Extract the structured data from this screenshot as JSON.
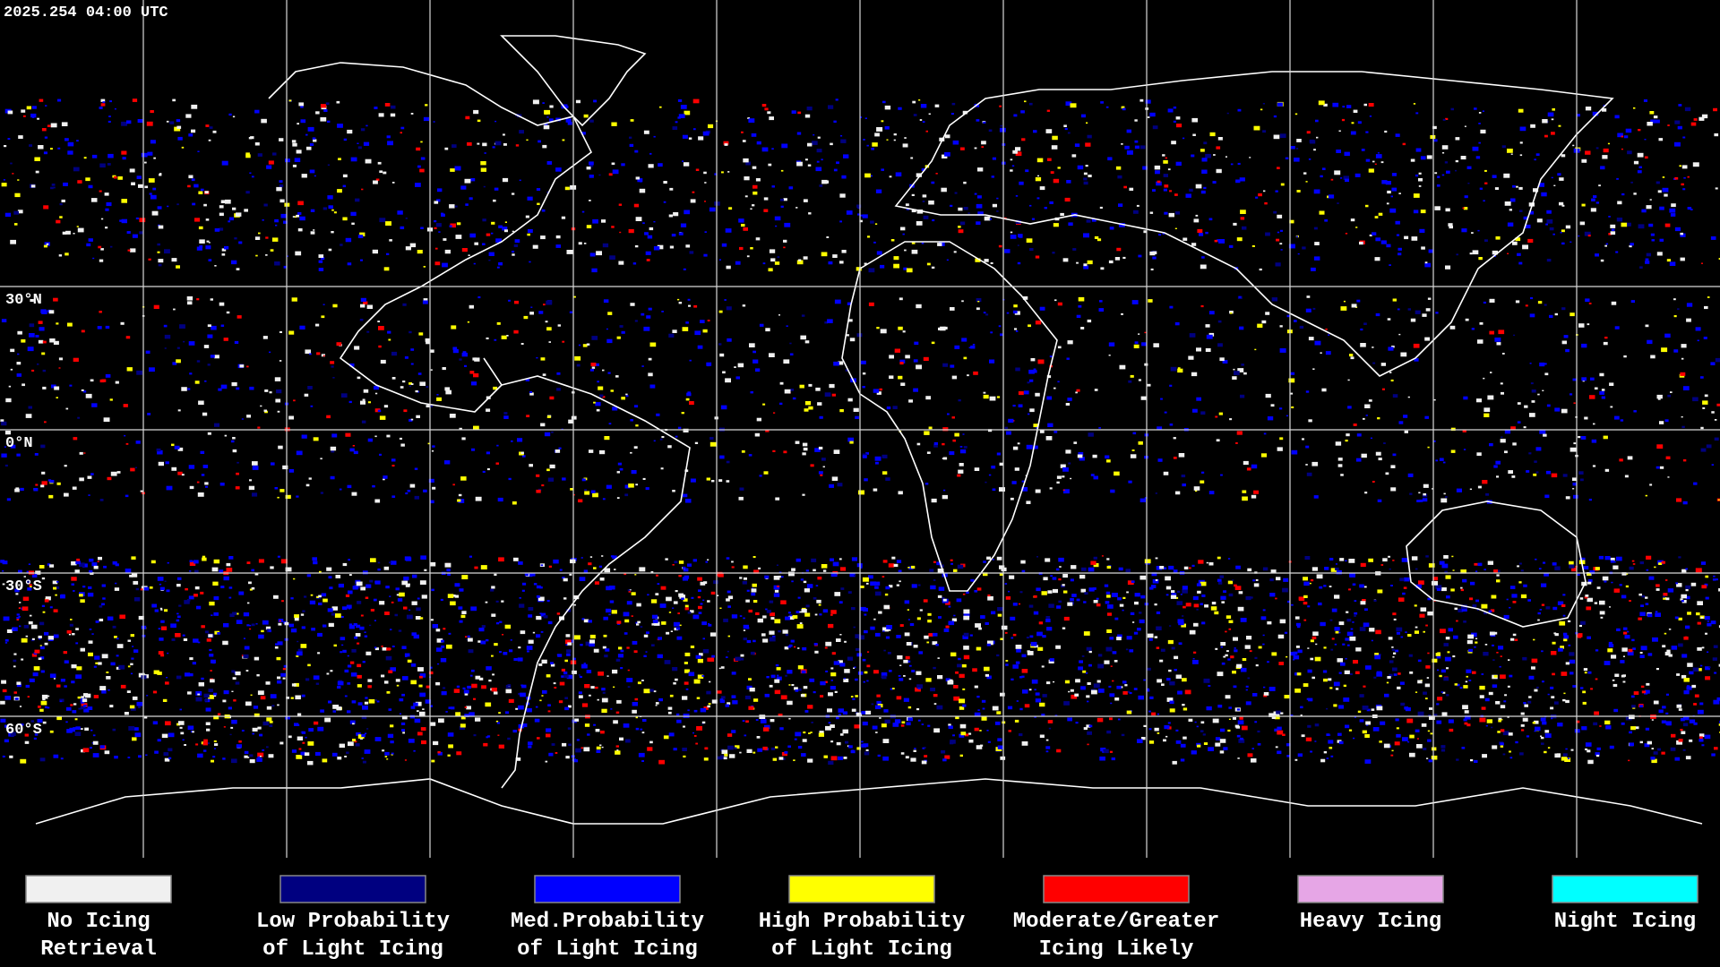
{
  "header": {
    "timestamp": "2025.254 04:00 UTC"
  },
  "map": {
    "latitude_labels": [
      "30°N",
      "0°N",
      "30°S",
      "60°S"
    ]
  },
  "legend": {
    "items": [
      {
        "label_lines": [
          "No Icing",
          "Retrieval"
        ],
        "color": "#f0f0f0"
      },
      {
        "label_lines": [
          "Low Probability",
          "of Light Icing"
        ],
        "color": "#000080"
      },
      {
        "label_lines": [
          "Med.Probability",
          "of Light Icing"
        ],
        "color": "#0000ff"
      },
      {
        "label_lines": [
          "High Probability",
          "of Light Icing"
        ],
        "color": "#ffff00"
      },
      {
        "label_lines": [
          "Moderate/Greater",
          "Icing Likely"
        ],
        "color": "#ff0000"
      },
      {
        "label_lines": [
          "Heavy Icing"
        ],
        "color": "#e6a6e6"
      },
      {
        "label_lines": [
          "Night Icing"
        ],
        "color": "#00ffff"
      }
    ]
  }
}
